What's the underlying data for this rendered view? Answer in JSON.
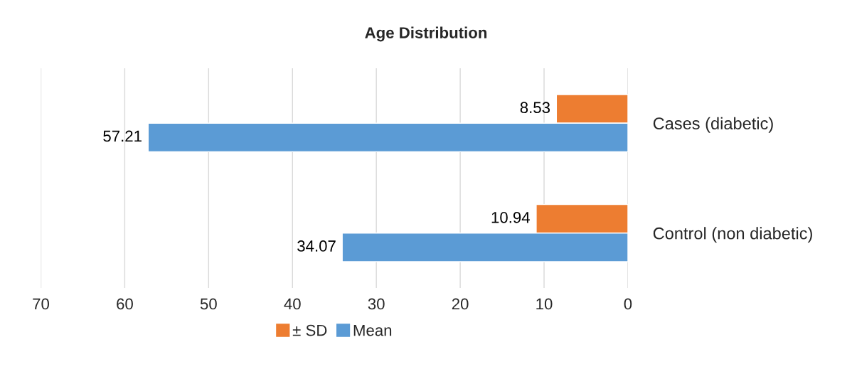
{
  "chart_data": {
    "type": "bar",
    "orientation": "horizontal",
    "title": "Age Distribution",
    "categories": [
      "Cases (diabetic)",
      "Control (non diabetic)"
    ],
    "series": [
      {
        "name": "± SD",
        "color": "#ed7d31",
        "values": [
          8.53,
          10.94
        ]
      },
      {
        "name": "Mean",
        "color": "#5b9bd5",
        "values": [
          57.21,
          34.07
        ]
      }
    ],
    "xlim": [
      70,
      0
    ],
    "xticks": [
      70,
      60,
      50,
      40,
      30,
      20,
      10,
      0
    ],
    "grid": "x",
    "legend": "bottom",
    "data_labels": true
  }
}
